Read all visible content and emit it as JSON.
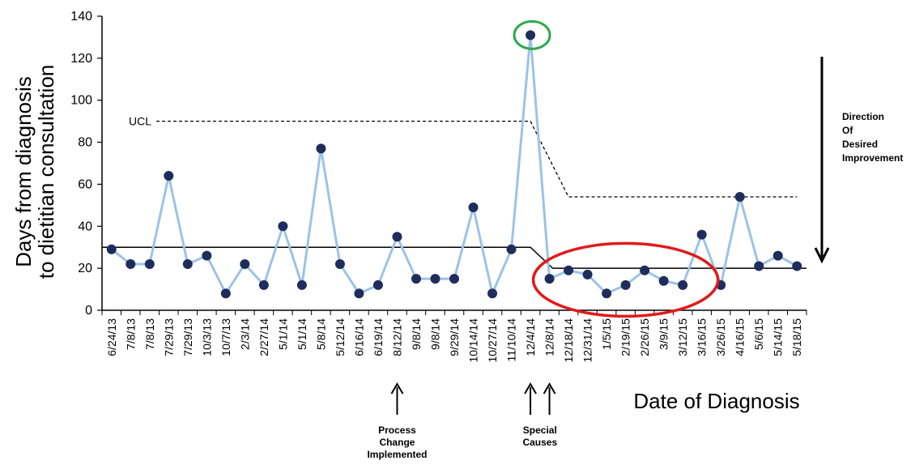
{
  "chart_data": {
    "type": "line",
    "title": "",
    "xlabel": "Date of Diagnosis",
    "ylabel_lines": [
      "Days from diagnosis",
      "to dietitian consultation"
    ],
    "ylim": [
      0,
      140
    ],
    "yticks": [
      0,
      20,
      40,
      60,
      80,
      100,
      120,
      140
    ],
    "categories": [
      "6/24/13",
      "7/8/13",
      "7/8/13",
      "7/29/13",
      "7/29/13",
      "10/3/13",
      "10/7/13",
      "2/3/14",
      "2/27/14",
      "5/1/14",
      "5/1/14",
      "5/8/14",
      "5/12/14",
      "6/16/14",
      "6/19/14",
      "8/12/14",
      "9/8/14",
      "9/8/14",
      "9/29/14",
      "10/14/14",
      "10/27/14",
      "11/10/14",
      "12/4/14",
      "12/8/14",
      "12/18/14",
      "12/31/14",
      "1/5/15",
      "2/19/15",
      "2/26/15",
      "3/9/15",
      "3/12/15",
      "3/16/15",
      "3/26/15",
      "4/16/15",
      "5/6/15",
      "5/14/15",
      "5/18/15"
    ],
    "series": [
      {
        "values": [
          29,
          22,
          22,
          64,
          22,
          26,
          8,
          22,
          12,
          40,
          12,
          77,
          22,
          8,
          12,
          35,
          15,
          15,
          15,
          49,
          8,
          29,
          131,
          15,
          19,
          17,
          8,
          12,
          19,
          14,
          12,
          36,
          12,
          54,
          21,
          26,
          21
        ],
        "line_color": "#9cc3e6",
        "marker_color": "#1f2d5c"
      }
    ],
    "center_line": {
      "before": 30,
      "after": 20,
      "step_start_index": 21,
      "step_end_index": 23,
      "color": "#000000"
    },
    "ucl_line": {
      "label": "UCL",
      "before": 90,
      "after": 54,
      "start_index": 1.5,
      "step_start_index": 22,
      "step_end_index": 24,
      "color": "#000000"
    },
    "grid": false,
    "annotations": {
      "direction": {
        "lines": [
          "Direction",
          "Of",
          "Desired",
          "Improvement"
        ]
      },
      "process_change": {
        "lines": [
          "Process",
          "Change",
          "Implemented"
        ],
        "index": 15
      },
      "special_causes": {
        "lines": [
          "Special",
          "Causes"
        ],
        "indices": [
          22,
          23
        ]
      },
      "outlier_circle": {
        "index": 22,
        "color": "#2ea84a"
      },
      "improvement_ellipse": {
        "color": "#e01b1b",
        "from_index": 23,
        "to_index": 31
      }
    }
  }
}
